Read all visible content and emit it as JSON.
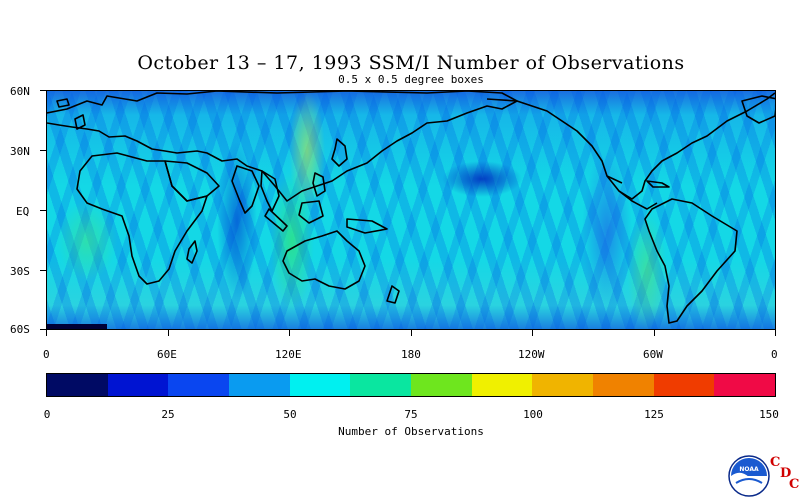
{
  "title": "October 13 – 17, 1993 SSM/I Number of Observations",
  "subtitle": "0.5 x 0.5 degree boxes",
  "map": {
    "lat_labels": [
      "60N",
      "30N",
      "EQ",
      "30S",
      "60S"
    ],
    "lon_labels": [
      "0",
      "60E",
      "120E",
      "180",
      "120W",
      "60W",
      "0"
    ]
  },
  "colorbar": {
    "title": "Number of Observations",
    "tick_labels": [
      "0",
      "25",
      "50",
      "75",
      "100",
      "125",
      "150"
    ],
    "colors": [
      "#000a64",
      "#0014d2",
      "#0a46f0",
      "#0a9bf0",
      "#00f0f0",
      "#0ae6a0",
      "#6ee61e",
      "#f0f000",
      "#f0b400",
      "#f08200",
      "#f03c00",
      "#f00a46"
    ]
  },
  "chart_data": {
    "type": "heatmap",
    "title": "October 13 – 17, 1993 SSM/I Number of Observations",
    "subtitle": "0.5 x 0.5 degree boxes",
    "xlabel": "",
    "ylabel": "",
    "x_ticks": [
      "0",
      "60E",
      "120E",
      "180",
      "120W",
      "60W",
      "0"
    ],
    "y_ticks": [
      "60N",
      "30N",
      "EQ",
      "30S",
      "60S"
    ],
    "xlim": [
      0,
      360
    ],
    "ylim": [
      -60,
      60
    ],
    "colorbar_label": "Number of Observations",
    "colorbar_range": [
      0,
      150
    ],
    "colorbar_ticks": [
      0,
      25,
      50,
      75,
      100,
      125,
      150
    ]
  },
  "logo": {
    "noaa_text": "NOAA",
    "cdc_letters": [
      "C",
      "D",
      "C"
    ]
  }
}
